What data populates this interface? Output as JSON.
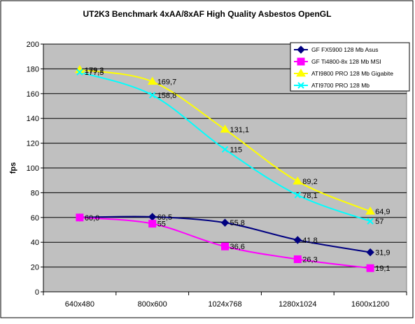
{
  "chart_data": {
    "type": "line",
    "title": "UT2K3 Benchmark 4xAA/8xAF High Quality Asbestos OpenGL",
    "xlabel": "",
    "ylabel": "fps",
    "categories": [
      "640x480",
      "800x600",
      "1024x768",
      "1280x1024",
      "1600x1200"
    ],
    "ylim": [
      0,
      200
    ],
    "yticks": [
      0,
      20,
      40,
      60,
      80,
      100,
      120,
      140,
      160,
      180,
      200
    ],
    "grid": true,
    "legend_position": "top-right",
    "series": [
      {
        "name": "GF FX5900 128 Mb Asus",
        "color": "#000080",
        "marker": "diamond",
        "values": [
          60.0,
          60.5,
          55.8,
          41.8,
          31.9
        ],
        "labels": [
          "60,0",
          "60,5",
          "55,8",
          "41,8",
          "31,9"
        ]
      },
      {
        "name": "GF Ti4800-8x 128 Mb MSI",
        "color": "#ff00ff",
        "marker": "square",
        "values": [
          60.0,
          55.0,
          36.6,
          26.3,
          19.1
        ],
        "labels": [
          "",
          "55",
          "36,6",
          "26,3",
          "19,1"
        ]
      },
      {
        "name": "ATI9800 PRO 128 Mb Gigabite",
        "color": "#ffff00",
        "marker": "triangle",
        "values": [
          179.2,
          169.7,
          131.1,
          89.2,
          64.9
        ],
        "labels": [
          "179,2",
          "169,7",
          "131,1",
          "89,2",
          "64,9"
        ]
      },
      {
        "name": "ATI9700 PRO 128 Mb",
        "color": "#00ffff",
        "marker": "x",
        "values": [
          177.3,
          158.8,
          115.0,
          78.1,
          57.0
        ],
        "labels": [
          "177,3",
          "158,8",
          "115",
          "78,1",
          "57"
        ]
      }
    ]
  }
}
